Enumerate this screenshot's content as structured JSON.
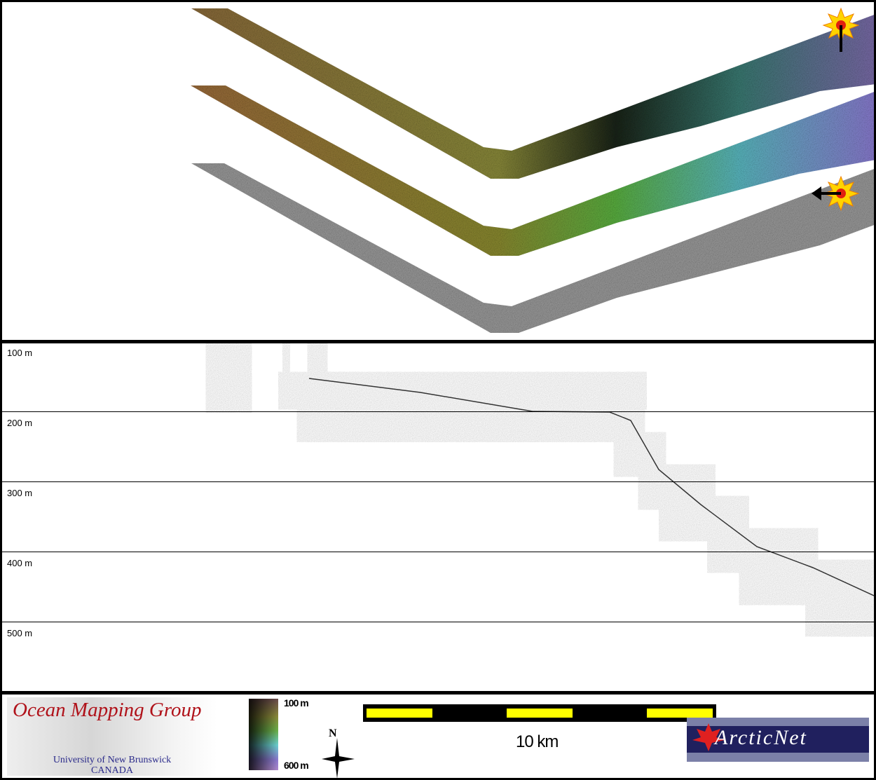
{
  "map": {
    "swaths": [
      "shaded-relief-bathymetry",
      "colour-coded-bathymetry",
      "backscatter"
    ],
    "markers": [
      "explosion-marker-top",
      "explosion-marker-bottom"
    ]
  },
  "profile": {
    "depth_labels": [
      "100 m",
      "200 m",
      "300 m",
      "400 m",
      "500 m"
    ]
  },
  "legend": {
    "omg_title": "Ocean Mapping Group",
    "omg_university": "University of New Brunswick",
    "omg_country": "CANADA",
    "colorbar_min": "100 m",
    "colorbar_max": "600 m",
    "colorbar_colors": [
      "#6a4a4a",
      "#8a8a3a",
      "#6ab04a",
      "#6ad0d0",
      "#8a7ad0",
      "#b08ad0"
    ],
    "north_label": "N",
    "scale_label": "10 km",
    "scale_colors": {
      "bar": "#000000",
      "segment": "#ffff00"
    },
    "arcticnet_logo": "ArcticNet"
  }
}
